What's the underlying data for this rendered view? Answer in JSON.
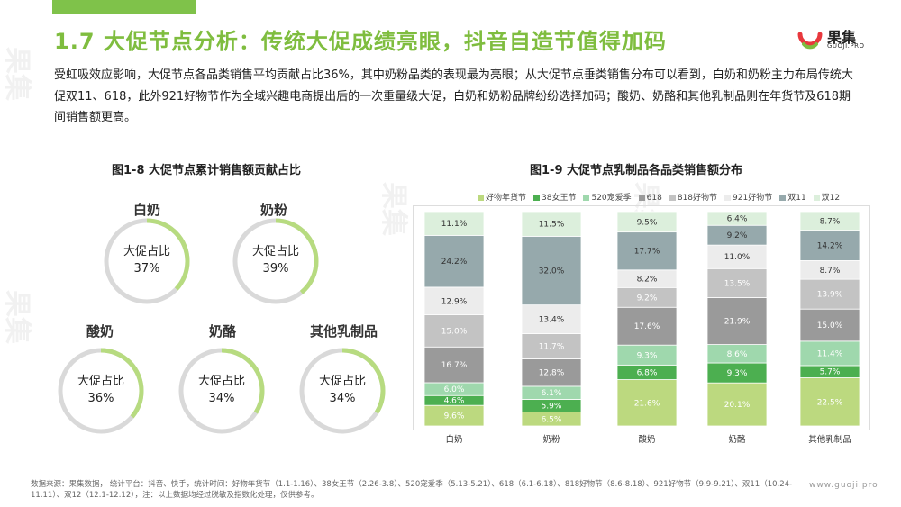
{
  "header": {
    "title": "1.7 大促节点分析：传统大促成绩亮眼，抖音自造节值得加码"
  },
  "logo": {
    "text": "果集",
    "sub": "GUOJI.PRO",
    "watermark": "果集"
  },
  "intro": "受虹吸效应影响，大促节点各品类销售平均贡献占比36%，其中奶粉品类的表现最为亮眼；从大促节点垂类销售分布可以看到，白奶和奶粉主力布局传统大促双11、618，此外921好物节作为全域兴趣电商提出后的一次重量级大促，白奶和奶粉品牌纷纷选择加码；酸奶、奶酪和其他乳制品则在年货节及618期间销售额更高。",
  "left_figure": {
    "title": "图1-8 大促节点累计销售额贡献占比",
    "ring_label": "大促占比",
    "items": [
      {
        "name": "白奶",
        "value": "37%",
        "fraction": 0.37
      },
      {
        "name": "奶粉",
        "value": "39%",
        "fraction": 0.39
      },
      {
        "name": "酸奶",
        "value": "36%",
        "fraction": 0.36
      },
      {
        "name": "奶酪",
        "value": "34%",
        "fraction": 0.34
      },
      {
        "name": "其他乳制品",
        "value": "34%",
        "fraction": 0.34
      }
    ]
  },
  "colors": {
    "accent": "#7fbd3f",
    "ring_bg": "#d9d9d9",
    "ring_fg": "#b7db80"
  },
  "chart_data": {
    "type": "bar",
    "stacked": true,
    "percent": true,
    "title": "图1-9 大促节点乳制品各品类销售额分布",
    "legend_position": "top",
    "categories": [
      "白奶",
      "奶粉",
      "酸奶",
      "奶酪",
      "其他乳制品"
    ],
    "series": [
      {
        "name": "好物年货节",
        "color": "#bcd97f",
        "text": "#ffffff",
        "values": [
          9.6,
          6.5,
          21.6,
          20.1,
          22.5
        ]
      },
      {
        "name": "38女王节",
        "color": "#4caf50",
        "text": "#ffffff",
        "values": [
          4.6,
          5.9,
          6.8,
          9.3,
          5.7
        ]
      },
      {
        "name": "520宠爱季",
        "color": "#9fd8ad",
        "text": "#ffffff",
        "values": [
          6.0,
          6.1,
          9.3,
          8.6,
          11.4
        ]
      },
      {
        "name": "618",
        "color": "#9a9a9a",
        "text": "#ffffff",
        "values": [
          16.7,
          12.8,
          17.6,
          21.9,
          15.0
        ]
      },
      {
        "name": "818好物节",
        "color": "#c3c3c3",
        "text": "#ffffff",
        "values": [
          15.0,
          11.7,
          9.2,
          13.5,
          13.9
        ]
      },
      {
        "name": "921好物节",
        "color": "#ececec",
        "text": "#333333",
        "values": [
          12.9,
          13.4,
          8.2,
          11.0,
          8.7
        ]
      },
      {
        "name": "双11",
        "color": "#96a9ac",
        "text": "#333333",
        "values": [
          24.2,
          32.0,
          17.7,
          9.2,
          14.2
        ]
      },
      {
        "name": "双12",
        "color": "#dcefdc",
        "text": "#333333",
        "values": [
          11.1,
          11.5,
          9.5,
          6.4,
          8.7
        ]
      }
    ],
    "ylim": [
      0,
      100
    ]
  },
  "footnote": "数据来源：果集数据， 统计平台：抖音、快手，统计时间：好物年货节（1.1-1.16）、38女王节（2.26-3.8）、520宠爱季（5.13-5.21）、618（6.1-6.18）、818好物节（8.6-8.18）、921好物节（9.9-9.21）、双11（10.24-11.11）、双12（12.1-12.12），注：以上数据均经过脱敏及指数化处理，仅供参考。",
  "site": "www.guoji.pro"
}
